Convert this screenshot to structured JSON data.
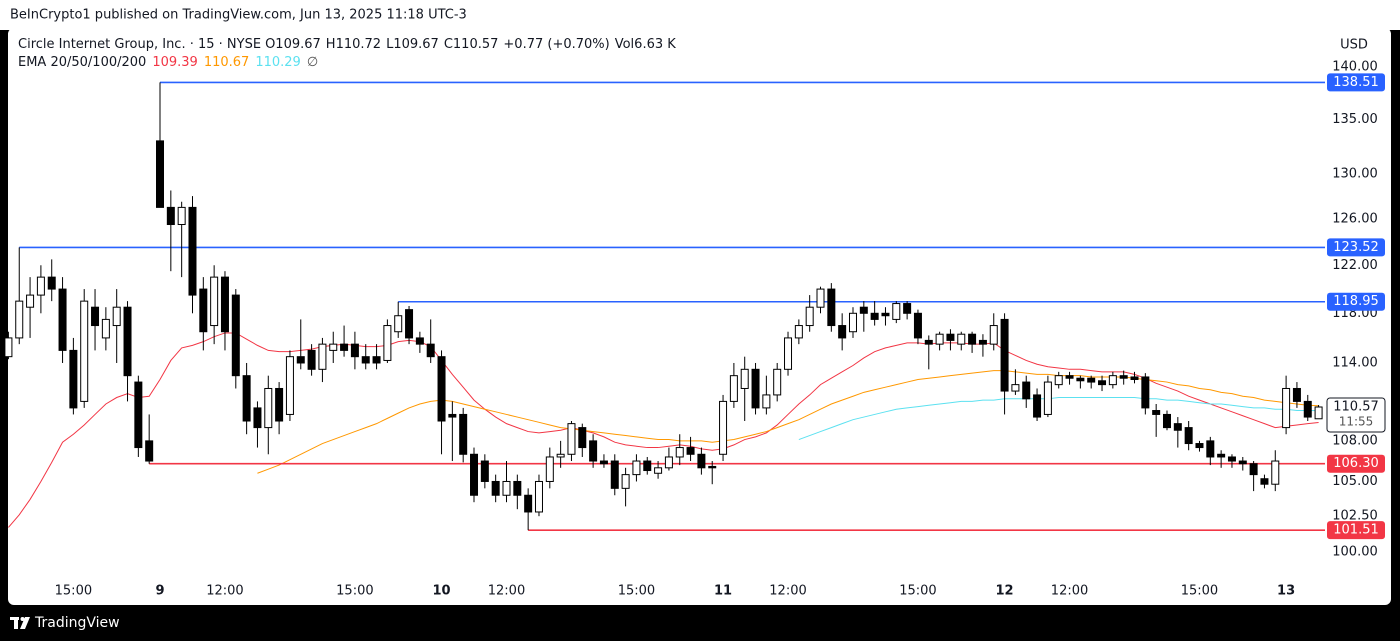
{
  "header": "BeInCrypto1 published on TradingView.com, Jun 13, 2025 11:18 UTC-3",
  "footer": "TradingView",
  "chart_data": {
    "type": "candlestick",
    "title": "Circle Internet Group, Inc. · 15 · NYSE",
    "legend_items": [
      {
        "label": "O",
        "value": 109.67
      },
      {
        "label": "H",
        "value": 110.72
      },
      {
        "label": "L",
        "value": 109.67
      },
      {
        "label": "C",
        "value": 110.57
      },
      {
        "label": "",
        "value": "+0.77 (+0.70%)"
      },
      {
        "label": "Vol",
        "value": "6.63 K"
      }
    ],
    "ema_legend": {
      "label": "EMA 20/50/100/200",
      "values": [
        109.39,
        110.67,
        110.29
      ],
      "symbol": "∅"
    },
    "currency": "USD",
    "countdown": "11:55",
    "log_scale": true,
    "grid": false,
    "up_color": "#ffffff",
    "down_color": "#000000",
    "ylim": [
      98.4,
      143.64
    ],
    "yticks": [
      {
        "value": 100,
        "label": "100.00"
      },
      {
        "value": 102.5,
        "label": "102.50"
      },
      {
        "value": 105,
        "label": "105.00"
      },
      {
        "value": 108,
        "label": "108.00"
      },
      {
        "value": 114,
        "label": "114.00"
      },
      {
        "value": 118,
        "label": "118.00"
      },
      {
        "value": 122,
        "label": "122.00"
      },
      {
        "value": 126,
        "label": "126.00"
      },
      {
        "value": 130,
        "label": "130.00"
      },
      {
        "value": 135,
        "label": "135.00"
      },
      {
        "value": 140,
        "label": "140.00"
      }
    ],
    "levels": [
      {
        "value": 138.51,
        "color": "#2962ff"
      },
      {
        "value": 123.52,
        "color": "#2962ff"
      },
      {
        "value": 118.95,
        "color": "#2962ff"
      },
      {
        "value": 106.3,
        "label": "106.30",
        "color": "#f23645"
      },
      {
        "value": 101.51,
        "color": "#f23645"
      }
    ],
    "categories": [
      null,
      null,
      null,
      null,
      null,
      null,
      "15:00",
      null,
      null,
      null,
      null,
      null,
      null,
      null,
      "9",
      null,
      null,
      null,
      null,
      null,
      "12:00",
      null,
      null,
      null,
      null,
      null,
      null,
      null,
      null,
      null,
      null,
      null,
      "15:00",
      null,
      null,
      null,
      null,
      null,
      null,
      null,
      "10",
      null,
      null,
      null,
      null,
      null,
      "12:00",
      null,
      null,
      null,
      null,
      null,
      null,
      null,
      null,
      null,
      null,
      null,
      "15:00",
      null,
      null,
      null,
      null,
      null,
      null,
      null,
      "11",
      null,
      null,
      null,
      null,
      null,
      "12:00",
      null,
      null,
      null,
      null,
      null,
      null,
      null,
      null,
      null,
      null,
      null,
      "15:00",
      null,
      null,
      null,
      null,
      null,
      null,
      null,
      "12",
      null,
      null,
      null,
      null,
      null,
      "12:00",
      null,
      null,
      null,
      null,
      null,
      null,
      null,
      null,
      null,
      null,
      null,
      "15:00",
      null,
      null,
      null,
      null,
      null,
      null,
      null,
      "13",
      null,
      null,
      null
    ],
    "candles": [
      [
        114.5,
        116.5,
        114.3,
        116
      ],
      [
        116,
        123.52,
        115.5,
        119
      ],
      [
        118.5,
        121,
        116,
        119.5
      ],
      [
        119.5,
        122,
        118,
        121
      ],
      [
        121,
        122.5,
        119,
        120
      ],
      [
        120,
        121,
        114,
        115
      ],
      [
        115,
        116,
        110,
        110.5
      ],
      [
        111,
        120,
        110.5,
        119
      ],
      [
        118.5,
        120,
        115,
        117
      ],
      [
        116,
        118.5,
        115,
        117.5
      ],
      [
        117,
        120,
        114,
        118.5
      ],
      [
        118.5,
        119,
        111,
        113
      ],
      [
        112.5,
        113,
        106.8,
        107.5
      ],
      [
        108,
        110,
        106.3,
        106.5
      ],
      [
        133,
        138.51,
        127,
        127
      ],
      [
        127,
        128.5,
        121.5,
        125.5
      ],
      [
        125.5,
        127.5,
        121,
        127
      ],
      [
        127,
        128,
        118,
        119.5
      ],
      [
        120,
        121,
        115,
        116.5
      ],
      [
        117,
        122,
        115.5,
        121
      ],
      [
        121,
        121.5,
        115,
        116.5
      ],
      [
        119.5,
        120,
        112,
        113
      ],
      [
        113,
        114,
        108.5,
        109.5
      ],
      [
        110.5,
        111,
        107.5,
        109
      ],
      [
        109,
        113,
        107,
        112
      ],
      [
        112,
        112.5,
        108.5,
        109.5
      ],
      [
        110,
        115,
        109.5,
        114.5
      ],
      [
        114.5,
        117.5,
        113.5,
        114
      ],
      [
        115,
        115.5,
        113,
        113.5
      ],
      [
        113.5,
        116,
        112.5,
        115.5
      ],
      [
        115,
        116.5,
        114,
        115.5
      ],
      [
        115.5,
        117,
        114.5,
        115
      ],
      [
        115.5,
        116.5,
        113.5,
        114.5
      ],
      [
        114.5,
        115.5,
        113.5,
        114
      ],
      [
        114.5,
        115.5,
        113.5,
        114
      ],
      [
        114.2,
        117.5,
        114,
        117
      ],
      [
        116.5,
        118.95,
        116,
        117.8
      ],
      [
        118.3,
        118.6,
        115.5,
        116
      ],
      [
        116,
        116.5,
        114.8,
        115.5
      ],
      [
        115.5,
        117.5,
        114,
        114.5
      ],
      [
        114.5,
        115,
        107,
        109.5
      ],
      [
        110,
        111,
        106.5,
        109.8
      ],
      [
        110,
        110.5,
        106.4,
        107
      ],
      [
        107,
        107.5,
        103.5,
        104
      ],
      [
        106.5,
        107,
        104.5,
        105
      ],
      [
        105,
        105.5,
        103.5,
        104
      ],
      [
        104,
        106.5,
        103.5,
        105
      ],
      [
        105,
        105.5,
        103,
        104
      ],
      [
        104,
        104.5,
        101.51,
        102.8
      ],
      [
        102.8,
        105.5,
        102.5,
        105
      ],
      [
        105,
        107.5,
        104.5,
        106.8
      ],
      [
        106.8,
        108,
        106,
        107
      ],
      [
        107,
        109.5,
        106.5,
        109.3
      ],
      [
        109,
        109.3,
        106.8,
        107.5
      ],
      [
        108,
        108.5,
        106,
        106.5
      ],
      [
        106.5,
        107,
        106,
        106.3
      ],
      [
        106.5,
        107,
        104,
        104.5
      ],
      [
        104.5,
        106,
        103.2,
        105.5
      ],
      [
        105.5,
        107,
        105,
        106.5
      ],
      [
        106.5,
        106.8,
        105.5,
        105.8
      ],
      [
        105.6,
        106.5,
        105.2,
        106
      ],
      [
        106,
        107.5,
        105.8,
        106.8
      ],
      [
        106.8,
        108.5,
        106.2,
        107.5
      ],
      [
        107.5,
        108.3,
        106.5,
        107
      ],
      [
        107,
        107.5,
        105.5,
        106
      ],
      [
        106.1,
        106.5,
        104.8,
        106
      ],
      [
        107,
        111.5,
        106.5,
        111
      ],
      [
        111,
        114,
        110.5,
        113
      ],
      [
        112,
        114.5,
        109.5,
        113.5
      ],
      [
        113.5,
        114,
        110,
        110.5
      ],
      [
        110.5,
        113,
        110,
        111.5
      ],
      [
        111.5,
        114,
        111,
        113.5
      ],
      [
        113.5,
        116.5,
        113,
        116
      ],
      [
        116,
        117.5,
        115.5,
        117
      ],
      [
        117,
        119.5,
        116.5,
        118.5
      ],
      [
        118.5,
        120.2,
        118,
        120
      ],
      [
        120,
        120.5,
        116.5,
        117
      ],
      [
        117,
        118,
        115,
        116
      ],
      [
        116.5,
        118.5,
        116,
        118
      ],
      [
        118.5,
        119,
        116.5,
        118
      ],
      [
        118,
        119,
        117,
        117.5
      ],
      [
        118,
        118.5,
        117,
        117.8
      ],
      [
        117.5,
        119,
        117.2,
        118.8
      ],
      [
        118.8,
        119,
        117.5,
        118
      ],
      [
        118,
        118.3,
        115.5,
        116
      ],
      [
        115.8,
        116.2,
        113.5,
        115.5
      ],
      [
        115.5,
        116.5,
        115,
        116.3
      ],
      [
        116.3,
        116.7,
        115,
        115.8
      ],
      [
        115.5,
        116.5,
        115,
        116.3
      ],
      [
        116.3,
        116.5,
        114.8,
        115.5
      ],
      [
        115.8,
        116.3,
        114.5,
        115.5
      ],
      [
        115.5,
        118,
        115,
        117
      ],
      [
        117.5,
        118,
        110,
        111.8
      ],
      [
        111.8,
        113.5,
        111.5,
        112.3
      ],
      [
        112.5,
        113,
        110.5,
        111.2
      ],
      [
        111.5,
        112,
        109.5,
        109.8
      ],
      [
        110,
        113,
        109.8,
        112.5
      ],
      [
        112.3,
        113.3,
        112,
        113
      ],
      [
        113,
        113.3,
        112.3,
        112.8
      ],
      [
        112.8,
        113,
        112,
        112.6
      ],
      [
        112.8,
        113,
        112,
        112.5
      ],
      [
        112.6,
        113,
        111.8,
        112.3
      ],
      [
        112.3,
        113.3,
        112,
        113
      ],
      [
        113,
        113.4,
        112.3,
        112.8
      ],
      [
        112.9,
        113.3,
        112.4,
        112.7
      ],
      [
        112.9,
        113.2,
        110,
        110.5
      ],
      [
        110.3,
        110.8,
        108.3,
        110
      ],
      [
        110,
        110.3,
        108.8,
        109
      ],
      [
        109.3,
        109.8,
        107.5,
        108.8
      ],
      [
        109,
        109.5,
        107.3,
        107.8
      ],
      [
        107.8,
        108,
        107.2,
        107.5
      ],
      [
        108,
        108.3,
        106.2,
        106.8
      ],
      [
        107,
        107.3,
        106,
        106.8
      ],
      [
        106.8,
        107,
        106,
        106.5
      ],
      [
        106.5,
        106.8,
        105.8,
        106.3
      ],
      [
        106.3,
        106.5,
        104.3,
        105.5
      ],
      [
        105.2,
        105.5,
        104.5,
        104.8
      ],
      [
        104.8,
        107.3,
        104.3,
        106.5
      ],
      [
        109,
        113,
        108.5,
        112
      ],
      [
        112,
        112.5,
        110.5,
        111
      ],
      [
        111,
        111.5,
        109.5,
        109.8
      ],
      [
        109.67,
        110.72,
        109.67,
        110.57
      ]
    ],
    "series": [
      {
        "color": "#f23645",
        "values": [
          101.7,
          102.6,
          103.7,
          105.0,
          106.4,
          107.9,
          108.5,
          109.2,
          110.0,
          110.8,
          111.3,
          111.6,
          111.3,
          111.4,
          112.7,
          114.2,
          115.2,
          115.4,
          115.7,
          116.1,
          116.4,
          116.4,
          115.9,
          115.4,
          115.0,
          114.9,
          114.9,
          115.0,
          115.1,
          115.3,
          115.4,
          115.5,
          115.4,
          115.3,
          115.3,
          115.4,
          115.7,
          115.8,
          115.7,
          115.3,
          114.2,
          113.1,
          112.1,
          111.1,
          110.4,
          109.8,
          109.3,
          109.0,
          108.7,
          108.6,
          108.7,
          108.8,
          109.0,
          108.8,
          108.6,
          108.3,
          107.9,
          107.7,
          107.6,
          107.5,
          107.5,
          107.6,
          107.7,
          107.6,
          107.4,
          107.3,
          107.4,
          107.7,
          108.1,
          108.3,
          108.6,
          109.2,
          110.0,
          110.8,
          111.5,
          112.3,
          112.8,
          113.3,
          113.8,
          114.4,
          114.9,
          115.2,
          115.4,
          115.6,
          115.6,
          115.5,
          115.6,
          115.6,
          115.6,
          115.5,
          115.5,
          115.6,
          115.0,
          114.6,
          114.2,
          113.9,
          113.7,
          113.6,
          113.5,
          113.5,
          113.4,
          113.3,
          113.3,
          113.3,
          113.1,
          112.8,
          112.4,
          112.1,
          111.8,
          111.4,
          111.1,
          110.8,
          110.5,
          110.2,
          109.9,
          109.6,
          109.3,
          109.0,
          109.1,
          109.2,
          109.3,
          109.39
        ]
      },
      {
        "color": "#ff9800",
        "values": [
          null,
          null,
          null,
          null,
          null,
          null,
          null,
          null,
          null,
          null,
          null,
          null,
          null,
          null,
          null,
          null,
          null,
          null,
          null,
          null,
          null,
          null,
          null,
          105.6,
          105.9,
          106.2,
          106.6,
          107.0,
          107.4,
          107.8,
          108.1,
          108.4,
          108.7,
          109.0,
          109.3,
          109.7,
          110.1,
          110.5,
          110.8,
          111.0,
          111.1,
          111.0,
          110.8,
          110.6,
          110.4,
          110.2,
          110.0,
          109.8,
          109.6,
          109.4,
          109.2,
          109.0,
          108.9,
          108.8,
          108.7,
          108.6,
          108.5,
          108.4,
          108.3,
          108.2,
          108.1,
          108.1,
          108.0,
          108.0,
          108.0,
          107.9,
          108.0,
          108.1,
          108.3,
          108.5,
          108.7,
          109.0,
          109.3,
          109.6,
          110.0,
          110.4,
          110.8,
          111.1,
          111.4,
          111.7,
          111.9,
          112.1,
          112.3,
          112.5,
          112.7,
          112.8,
          112.9,
          113.0,
          113.1,
          113.2,
          113.3,
          113.4,
          113.4,
          113.3,
          113.2,
          113.1,
          113.1,
          113.0,
          113.0,
          113.0,
          112.9,
          112.9,
          112.9,
          112.9,
          112.8,
          112.7,
          112.6,
          112.5,
          112.3,
          112.2,
          112.0,
          111.9,
          111.7,
          111.6,
          111.4,
          111.3,
          111.1,
          111.0,
          110.9,
          110.8,
          110.7,
          110.67
        ]
      },
      {
        "color": "#5ce1f0",
        "values": [
          null,
          null,
          null,
          null,
          null,
          null,
          null,
          null,
          null,
          null,
          null,
          null,
          null,
          null,
          null,
          null,
          null,
          null,
          null,
          null,
          null,
          null,
          null,
          null,
          null,
          null,
          null,
          null,
          null,
          null,
          null,
          null,
          null,
          null,
          null,
          null,
          null,
          null,
          null,
          null,
          null,
          null,
          null,
          null,
          null,
          null,
          null,
          null,
          null,
          null,
          null,
          null,
          null,
          null,
          null,
          null,
          null,
          null,
          null,
          null,
          null,
          null,
          null,
          null,
          null,
          null,
          null,
          null,
          null,
          null,
          null,
          null,
          null,
          108.1,
          108.4,
          108.7,
          109.0,
          109.3,
          109.6,
          109.8,
          110.0,
          110.2,
          110.4,
          110.5,
          110.6,
          110.7,
          110.8,
          110.9,
          111.0,
          111.0,
          111.1,
          111.1,
          111.2,
          111.2,
          111.2,
          111.2,
          111.2,
          111.3,
          111.3,
          111.3,
          111.3,
          111.3,
          111.3,
          111.3,
          111.3,
          111.2,
          111.2,
          111.1,
          111.1,
          111.0,
          110.9,
          110.8,
          110.8,
          110.7,
          110.6,
          110.5,
          110.5,
          110.4,
          110.4,
          110.3,
          110.3,
          110.29
        ]
      }
    ]
  }
}
